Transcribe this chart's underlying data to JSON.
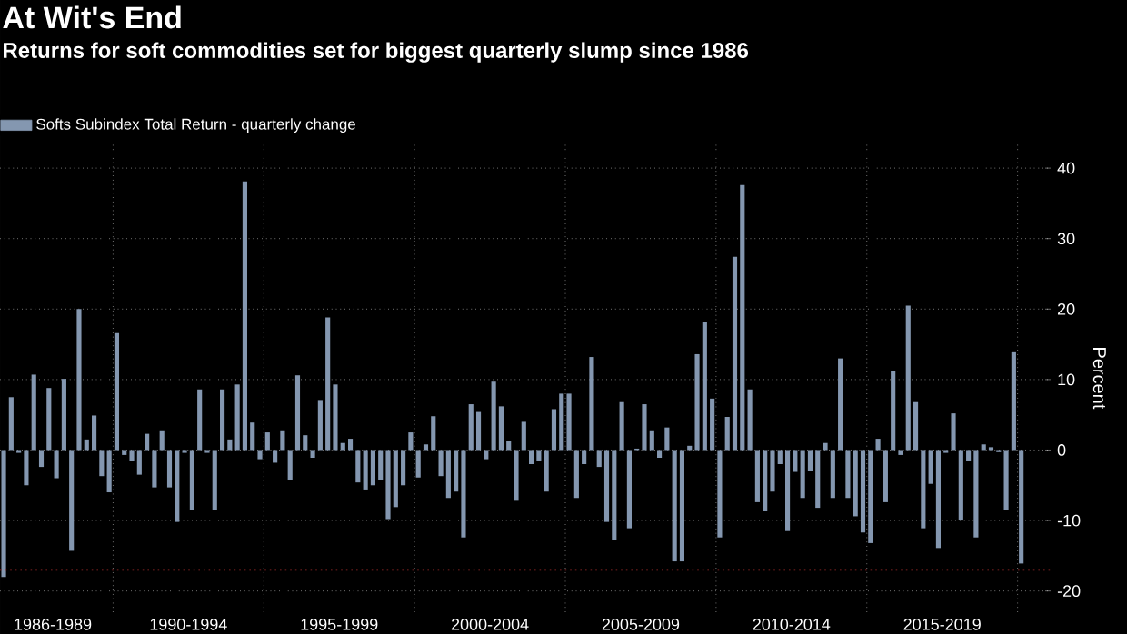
{
  "chart_data": {
    "type": "bar",
    "title": "At Wit's End",
    "subtitle": "Returns for soft commodities set for biggest quarterly slump since 1986",
    "ylabel": "Percent",
    "x": [
      "1986-05-15",
      "1986-08-15",
      "1986-11-15",
      "1987-02-15",
      "1987-05-15",
      "1987-08-15",
      "1987-11-15",
      "1988-02-15",
      "1988-05-15",
      "1988-08-15",
      "1988-11-15",
      "1989-02-15",
      "1989-05-15",
      "1989-08-15",
      "1989-11-15",
      "1990-02-15",
      "1990-05-15",
      "1990-08-15",
      "1990-11-15",
      "1991-02-15",
      "1991-05-15",
      "1991-08-15",
      "1991-11-15",
      "1992-02-15",
      "1992-05-15",
      "1992-08-15",
      "1992-11-15",
      "1993-02-15",
      "1993-05-15",
      "1993-08-15",
      "1993-11-15",
      "1994-02-15",
      "1994-05-15",
      "1994-08-15",
      "1994-11-15",
      "1995-02-15",
      "1995-05-15",
      "1995-08-15",
      "1995-11-15",
      "1996-02-15",
      "1996-05-15",
      "1996-08-15",
      "1996-11-15",
      "1997-02-15",
      "1997-05-15",
      "1997-08-15",
      "1997-11-15",
      "1998-02-15",
      "1998-05-15",
      "1998-08-15",
      "1998-11-15",
      "1999-02-15",
      "1999-05-15",
      "1999-08-15",
      "1999-11-15",
      "2000-02-15",
      "2000-05-15",
      "2000-08-15",
      "2000-11-15",
      "2001-02-15",
      "2001-05-15",
      "2001-08-15",
      "2001-11-15",
      "2002-02-15",
      "2002-05-15",
      "2002-08-15",
      "2002-11-15",
      "2003-02-15",
      "2003-05-15",
      "2003-08-15",
      "2003-11-15",
      "2004-02-15",
      "2004-05-15",
      "2004-08-15",
      "2004-11-15",
      "2005-02-15",
      "2005-05-15",
      "2005-08-15",
      "2005-11-15",
      "2006-02-15",
      "2006-05-15",
      "2006-08-15",
      "2006-11-15",
      "2007-02-15",
      "2007-05-15",
      "2007-08-15",
      "2007-11-15",
      "2008-02-15",
      "2008-05-15",
      "2008-08-15",
      "2008-11-15",
      "2009-02-15",
      "2009-05-15",
      "2009-08-15",
      "2009-11-15",
      "2010-02-15",
      "2010-05-15",
      "2010-08-15",
      "2010-11-15",
      "2011-02-15",
      "2011-05-15",
      "2011-08-15",
      "2011-11-15",
      "2012-02-15",
      "2012-05-15",
      "2012-08-15",
      "2012-11-15",
      "2013-02-15",
      "2013-05-15",
      "2013-08-15",
      "2013-11-15",
      "2014-02-15",
      "2014-05-15",
      "2014-08-15",
      "2014-11-15",
      "2015-02-15",
      "2015-05-15",
      "2015-08-15",
      "2015-11-15",
      "2016-02-15",
      "2016-05-15",
      "2016-08-15",
      "2016-11-15",
      "2017-02-15",
      "2017-05-15",
      "2017-08-15",
      "2017-11-15",
      "2018-02-15",
      "2018-05-15",
      "2018-08-15",
      "2018-11-15",
      "2019-02-15",
      "2019-05-15",
      "2019-08-15",
      "2019-11-15",
      "2020-02-15"
    ],
    "series": [
      {
        "name": "Softs Subindex Total Return - quarterly change",
        "color": "#8497b0",
        "values": [
          -18,
          7.5,
          -0.4,
          -5,
          10.7,
          -2.4,
          8.8,
          -4,
          10.1,
          -14.3,
          20,
          1.5,
          4.9,
          -3.7,
          -6,
          16.6,
          -0.7,
          -1.6,
          -3.5,
          2.3,
          -5.3,
          2.8,
          -5.3,
          -10.2,
          -0.4,
          -8.5,
          8.6,
          -0.4,
          -8.5,
          8.6,
          1.5,
          9.3,
          38.1,
          3.9,
          -1.3,
          2.5,
          -1.8,
          2.8,
          -4.2,
          10.6,
          2.1,
          -1.1,
          7.1,
          18.8,
          9.3,
          1.0,
          1.6,
          -4.6,
          -5.6,
          -5,
          -4.2,
          -9.8,
          -8.1,
          -5,
          2.5,
          -3.9,
          0.8,
          4.8,
          -3.7,
          -6.8,
          -5.9,
          -12.4,
          6.5,
          5.4,
          -1.3,
          9.7,
          6.2,
          1.3,
          -7.2,
          4,
          -2,
          -1.6,
          -5.9,
          5.8,
          8,
          8,
          -6.8,
          -2,
          13.2,
          -2.4,
          -10.2,
          -12.8,
          6.8,
          -11.1,
          0.2,
          6.5,
          2.8,
          -1.1,
          3.2,
          -15.8,
          -15.8,
          0.6,
          13.6,
          18.1,
          7.3,
          -12.4,
          4.7,
          27.4,
          37.6,
          8.6,
          -7.4,
          -8.7,
          -5.9,
          -2,
          -11.5,
          -3.1,
          -6.8,
          -2.9,
          -8.2,
          1.0,
          -6.8,
          13,
          -6.8,
          -9.4,
          -11.7,
          -13.2,
          1.6,
          -7.4,
          11.2,
          -0.7,
          20.5,
          6.8,
          -11.1,
          -4.8,
          -13.9,
          -0.4,
          5.2,
          -10,
          -1.6,
          -12.4,
          0.8,
          0.4,
          -0.3,
          -8.5,
          14,
          -16.1
        ]
      }
    ],
    "xlim": [
      "1986-04-01",
      "2021-02-06"
    ],
    "xticks": [
      {
        "value": "1988",
        "label": "1986-1989"
      },
      {
        "value": "1990",
        "label": null
      },
      {
        "value": "1992-07",
        "label": "1990-1994"
      },
      {
        "value": "1995",
        "label": null
      },
      {
        "value": "1997-07",
        "label": "1995-1999"
      },
      {
        "value": "2000",
        "label": null
      },
      {
        "value": "2002-07",
        "label": "2000-2004"
      },
      {
        "value": "2005",
        "label": null
      },
      {
        "value": "2007-07",
        "label": "2005-2009"
      },
      {
        "value": "2010",
        "label": null
      },
      {
        "value": "2012-07",
        "label": "2010-2014"
      },
      {
        "value": "2015",
        "label": null
      },
      {
        "value": "2017-07",
        "label": "2015-2019"
      },
      {
        "value": "2020",
        "label": null
      }
    ],
    "ylim": [
      -23,
      43.5
    ],
    "yticks": [
      -20,
      -10,
      0,
      10,
      20,
      30,
      40
    ],
    "ref_lines": [
      {
        "axis": "y",
        "value": -17,
        "color": "#a02828",
        "line_style": "dotted"
      }
    ],
    "grid": true,
    "legend": "top left"
  }
}
